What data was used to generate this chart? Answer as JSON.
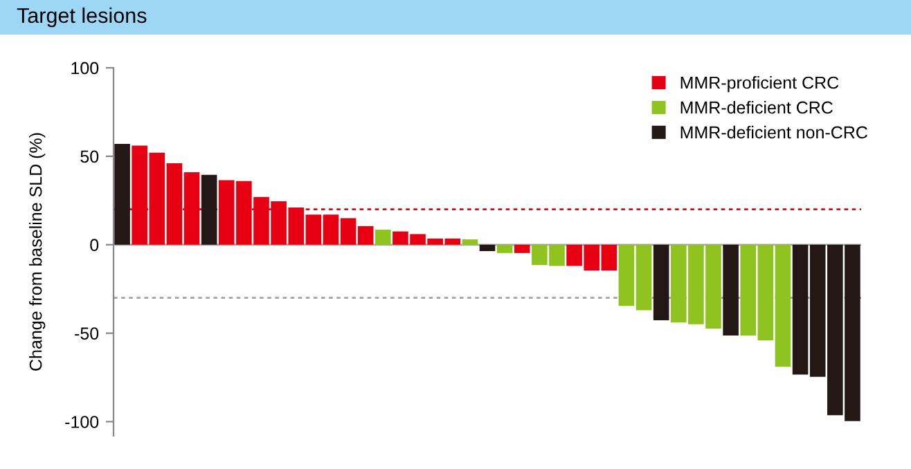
{
  "chart_data": {
    "type": "bar",
    "title": "Target lesions",
    "ylabel": "Change from baseline SLD (%)",
    "categories": [
      null,
      null,
      null,
      null,
      null,
      null,
      null,
      null,
      null,
      null,
      null,
      null,
      null,
      null,
      null,
      null,
      null,
      null,
      null,
      null,
      null,
      null,
      null,
      null,
      null,
      null,
      null,
      null,
      null,
      null,
      null,
      null,
      null,
      null,
      null,
      null,
      null,
      null,
      null,
      null,
      null,
      null,
      null
    ],
    "series": [
      {
        "name": "MMR-proficient CRC",
        "color": "#e60012",
        "values": [
          null,
          56,
          52,
          46,
          41,
          null,
          36.5,
          36,
          27,
          24.5,
          21,
          17,
          17,
          15,
          10.5,
          null,
          7.5,
          6,
          3.5,
          3.5,
          null,
          null,
          null,
          -4.7,
          null,
          null,
          -12,
          -14.6,
          -14.6,
          null,
          null,
          null,
          null,
          null,
          null,
          null,
          null,
          null,
          null,
          null,
          null,
          null,
          null
        ]
      },
      {
        "name": "MMR-deficient CRC",
        "color": "#8fc31f",
        "values": [
          null,
          null,
          null,
          null,
          null,
          null,
          null,
          null,
          null,
          null,
          null,
          null,
          null,
          null,
          null,
          8.5,
          null,
          null,
          null,
          null,
          3,
          null,
          -4.7,
          null,
          -11.5,
          -12,
          null,
          null,
          null,
          -34.6,
          -37,
          null,
          -44,
          -45,
          -47.4,
          null,
          -51.3,
          -54,
          -69,
          null,
          null,
          null,
          null
        ]
      },
      {
        "name": "MMR-deficient non-CRC",
        "color": "#231815",
        "values": [
          57,
          null,
          null,
          null,
          null,
          39.5,
          null,
          null,
          null,
          null,
          null,
          null,
          null,
          null,
          null,
          null,
          null,
          null,
          null,
          null,
          null,
          -3.6,
          null,
          null,
          null,
          null,
          null,
          null,
          null,
          null,
          null,
          -42.7,
          null,
          null,
          null,
          -51.3,
          null,
          null,
          null,
          -73.4,
          -74.7,
          -96.4,
          -99.7
        ]
      }
    ],
    "ylim": [
      -108,
      100
    ],
    "yticks": [
      -100,
      -50,
      0,
      50,
      100
    ],
    "ref_lines": [
      {
        "axis": "y",
        "value": 0,
        "color": "#aaaaaa",
        "line_style": "solid"
      },
      {
        "axis": "y",
        "value": 20,
        "color": "#e60012",
        "line_style": "dotted"
      },
      {
        "axis": "y",
        "value": -30,
        "color": "#aaaaaa",
        "line_style": "dotted"
      }
    ],
    "legend": "top right",
    "grid": false
  }
}
